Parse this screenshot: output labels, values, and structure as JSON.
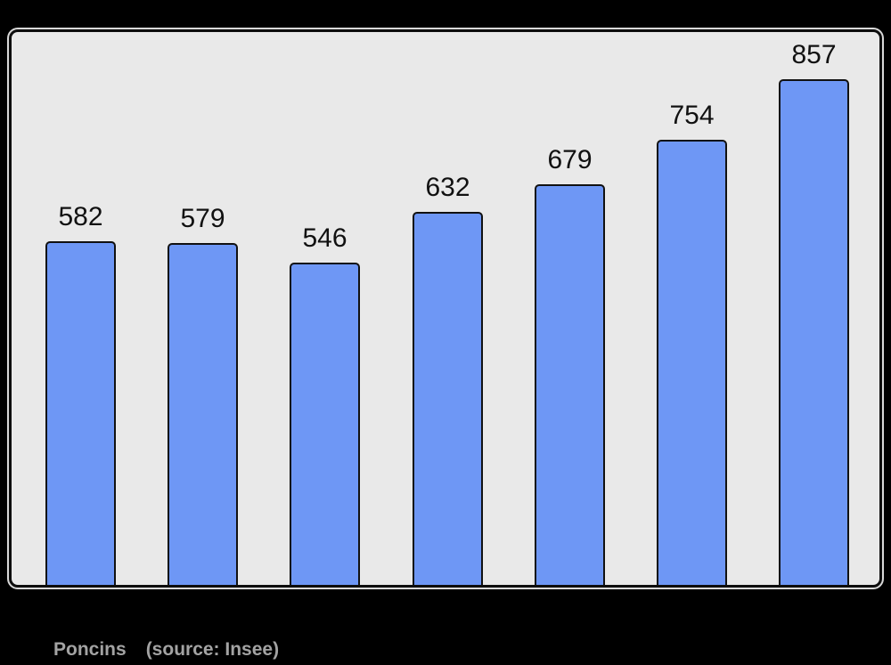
{
  "chart_data": {
    "type": "bar",
    "values": [
      582,
      579,
      546,
      632,
      679,
      754,
      857
    ],
    "data_labels": [
      "582",
      "579",
      "546",
      "632",
      "679",
      "754",
      "857"
    ],
    "categories": [],
    "title": "",
    "xlabel": "",
    "ylabel": "",
    "axes_shown": false,
    "grid": false,
    "legend": false,
    "ylim": [
      0,
      937
    ],
    "colors": {
      "bar_fill": "#6e97f5",
      "bar_border": "#111111",
      "value_label": "#111111",
      "panel_background": "#e9e9e9",
      "panel_border": "#0d0d0d",
      "page_background": "#000000",
      "caption_text": "#a3a3a3"
    }
  },
  "caption": {
    "commune": "Poncins",
    "source": "(source: Insee)"
  }
}
